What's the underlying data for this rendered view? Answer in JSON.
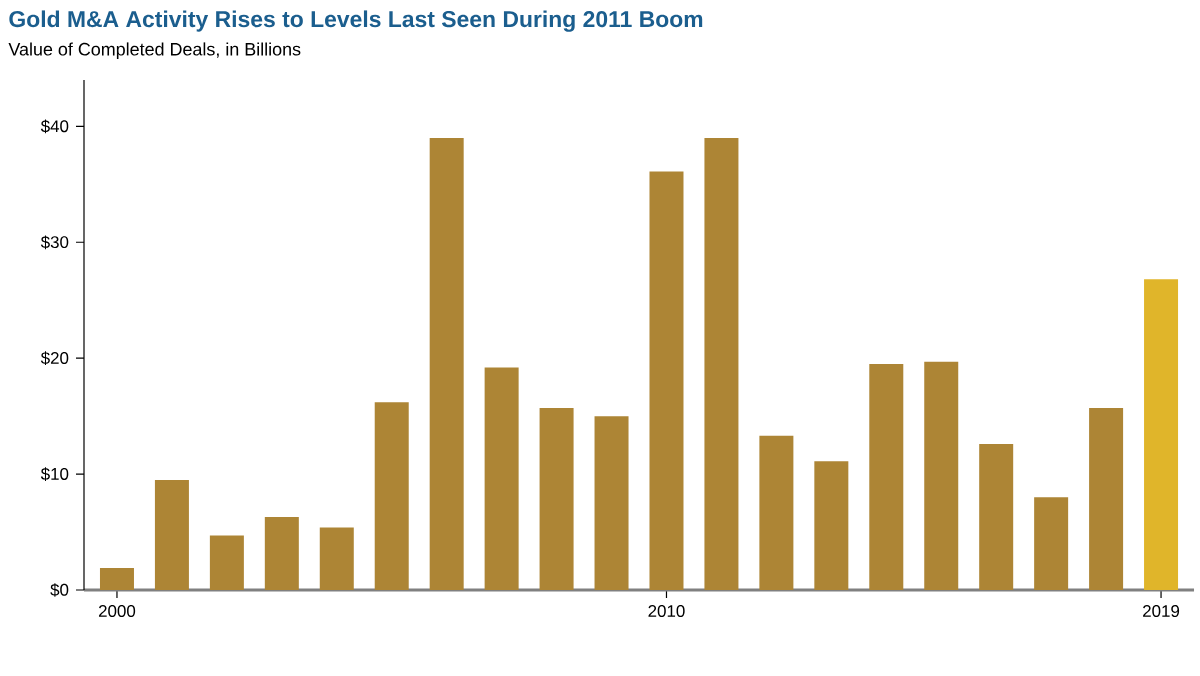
{
  "chart_data": {
    "type": "bar",
    "title": "Gold M&A Activity Rises to Levels Last Seen During 2011 Boom",
    "subtitle": "Value of Completed Deals, in Billions",
    "categories": [
      "2000",
      null,
      null,
      null,
      null,
      null,
      null,
      null,
      null,
      null,
      "2010",
      null,
      null,
      null,
      null,
      null,
      null,
      null,
      null,
      "2019"
    ],
    "values": [
      1.9,
      9.5,
      4.7,
      6.3,
      5.4,
      16.2,
      39.0,
      19.2,
      15.7,
      15.0,
      36.1,
      39.0,
      13.3,
      11.1,
      19.5,
      19.7,
      12.6,
      8.0,
      15.7,
      26.8
    ],
    "colors": [
      "#ad8535",
      "#ad8535",
      "#ad8535",
      "#ad8535",
      "#ad8535",
      "#ad8535",
      "#ad8535",
      "#ad8535",
      "#ad8535",
      "#ad8535",
      "#ad8535",
      "#ad8535",
      "#ad8535",
      "#ad8535",
      "#ad8535",
      "#ad8535",
      "#ad8535",
      "#ad8535",
      "#ad8535",
      "#e0b52a"
    ],
    "ylim": [
      0,
      44
    ],
    "yticks": [
      {
        "value": 0,
        "label": "$0"
      },
      {
        "value": 10,
        "label": "$10"
      },
      {
        "value": 20,
        "label": "$20"
      },
      {
        "value": 30,
        "label": "$30"
      },
      {
        "value": 40,
        "label": "$40"
      }
    ]
  }
}
